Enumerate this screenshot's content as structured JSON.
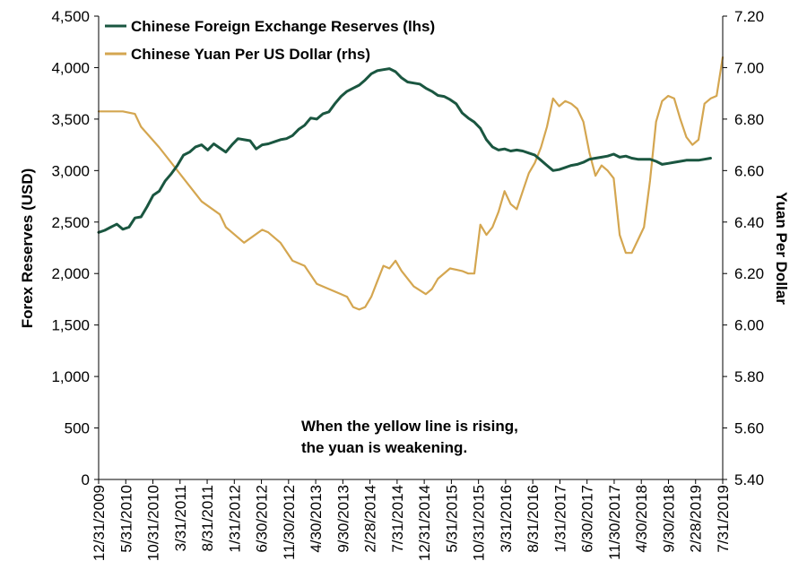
{
  "chart_data": {
    "type": "line",
    "title": "",
    "legend": {
      "placement": "top-left",
      "entries": [
        {
          "label": "Chinese Foreign Exchange Reserves (lhs)",
          "color": "#1a5640"
        },
        {
          "label": "Chinese Yuan Per US Dollar (rhs)",
          "color": "#d4a650"
        }
      ]
    },
    "annotation": {
      "line1": "When the yellow line is rising,",
      "line2": "the yuan is weakening."
    },
    "y_left": {
      "label": "Forex Reserves (USD)",
      "range": [
        0,
        4500
      ],
      "ticks": [
        "0",
        "500",
        "1,000",
        "1,500",
        "2,000",
        "2,500",
        "3,000",
        "3,500",
        "4,000",
        "4,500"
      ]
    },
    "y_right": {
      "label": "Yuan Per Dollar",
      "range": [
        5.4,
        7.2
      ],
      "ticks": [
        "5.40",
        "5.60",
        "5.80",
        "6.00",
        "6.20",
        "6.40",
        "6.60",
        "6.80",
        "7.00",
        "7.20"
      ]
    },
    "x_ticks": [
      "12/31/2009",
      "5/31/2010",
      "10/31/2010",
      "3/31/2011",
      "8/31/2011",
      "1/31/2012",
      "6/30/2012",
      "11/30/2012",
      "4/30/2013",
      "9/30/2013",
      "2/28/2014",
      "7/31/2014",
      "12/31/2014",
      "5/31/2015",
      "10/31/2015",
      "3/31/2016",
      "8/31/2016",
      "1/31/2017",
      "6/30/2017",
      "11/30/2017",
      "4/30/2018",
      "9/30/2018",
      "2/28/2019",
      "7/31/2019"
    ],
    "grid": false,
    "series": [
      {
        "name": "Chinese Foreign Exchange Reserves (lhs)",
        "axis": "left",
        "color": "#1a5640",
        "points": [
          [
            0,
            2400
          ],
          [
            1,
            2420
          ],
          [
            2,
            2450
          ],
          [
            3,
            2480
          ],
          [
            4,
            2430
          ],
          [
            5,
            2450
          ],
          [
            6,
            2540
          ],
          [
            7,
            2550
          ],
          [
            8,
            2650
          ],
          [
            9,
            2760
          ],
          [
            10,
            2800
          ],
          [
            11,
            2900
          ],
          [
            12,
            2970
          ],
          [
            13,
            3050
          ],
          [
            14,
            3150
          ],
          [
            15,
            3180
          ],
          [
            16,
            3230
          ],
          [
            17,
            3250
          ],
          [
            18,
            3200
          ],
          [
            19,
            3260
          ],
          [
            20,
            3220
          ],
          [
            21,
            3180
          ],
          [
            22,
            3250
          ],
          [
            23,
            3310
          ],
          [
            24,
            3300
          ],
          [
            25,
            3290
          ],
          [
            26,
            3210
          ],
          [
            27,
            3250
          ],
          [
            28,
            3260
          ],
          [
            29,
            3280
          ],
          [
            30,
            3300
          ],
          [
            31,
            3310
          ],
          [
            32,
            3340
          ],
          [
            33,
            3400
          ],
          [
            34,
            3440
          ],
          [
            35,
            3510
          ],
          [
            36,
            3500
          ],
          [
            37,
            3550
          ],
          [
            38,
            3570
          ],
          [
            39,
            3650
          ],
          [
            40,
            3720
          ],
          [
            41,
            3770
          ],
          [
            42,
            3800
          ],
          [
            43,
            3830
          ],
          [
            44,
            3880
          ],
          [
            45,
            3940
          ],
          [
            46,
            3970
          ],
          [
            47,
            3980
          ],
          [
            48,
            3990
          ],
          [
            49,
            3960
          ],
          [
            50,
            3900
          ],
          [
            51,
            3860
          ],
          [
            52,
            3850
          ],
          [
            53,
            3840
          ],
          [
            54,
            3800
          ],
          [
            55,
            3770
          ],
          [
            56,
            3730
          ],
          [
            57,
            3720
          ],
          [
            58,
            3690
          ],
          [
            59,
            3650
          ],
          [
            60,
            3560
          ],
          [
            61,
            3510
          ],
          [
            62,
            3470
          ],
          [
            63,
            3410
          ],
          [
            64,
            3300
          ],
          [
            65,
            3230
          ],
          [
            66,
            3200
          ],
          [
            67,
            3210
          ],
          [
            68,
            3190
          ],
          [
            69,
            3200
          ],
          [
            70,
            3190
          ],
          [
            71,
            3170
          ],
          [
            72,
            3150
          ],
          [
            73,
            3100
          ],
          [
            74,
            3050
          ],
          [
            75,
            3000
          ],
          [
            76,
            3010
          ],
          [
            77,
            3030
          ],
          [
            78,
            3050
          ],
          [
            79,
            3060
          ],
          [
            80,
            3080
          ],
          [
            81,
            3110
          ],
          [
            82,
            3120
          ],
          [
            83,
            3130
          ],
          [
            84,
            3140
          ],
          [
            85,
            3160
          ],
          [
            86,
            3130
          ],
          [
            87,
            3140
          ],
          [
            88,
            3120
          ],
          [
            89,
            3110
          ],
          [
            90,
            3110
          ],
          [
            91,
            3110
          ],
          [
            92,
            3090
          ],
          [
            93,
            3060
          ],
          [
            94,
            3070
          ],
          [
            95,
            3080
          ],
          [
            96,
            3090
          ],
          [
            97,
            3100
          ],
          [
            98,
            3100
          ],
          [
            99,
            3100
          ],
          [
            100,
            3110
          ],
          [
            101,
            3120
          ]
        ]
      },
      {
        "name": "Chinese Yuan Per US Dollar (rhs)",
        "axis": "right",
        "color": "#d4a650",
        "points": [
          [
            0,
            6.83
          ],
          [
            4,
            6.83
          ],
          [
            6,
            6.82
          ],
          [
            7,
            6.77
          ],
          [
            10,
            6.69
          ],
          [
            12,
            6.63
          ],
          [
            14,
            6.57
          ],
          [
            17,
            6.48
          ],
          [
            20,
            6.43
          ],
          [
            21,
            6.38
          ],
          [
            24,
            6.32
          ],
          [
            27,
            6.37
          ],
          [
            28,
            6.36
          ],
          [
            30,
            6.32
          ],
          [
            32,
            6.25
          ],
          [
            34,
            6.23
          ],
          [
            36,
            6.16
          ],
          [
            38,
            6.14
          ],
          [
            41,
            6.11
          ],
          [
            42,
            6.07
          ],
          [
            43,
            6.06
          ],
          [
            44,
            6.07
          ],
          [
            45,
            6.11
          ],
          [
            46,
            6.17
          ],
          [
            47,
            6.23
          ],
          [
            48,
            6.22
          ],
          [
            49,
            6.25
          ],
          [
            50,
            6.21
          ],
          [
            52,
            6.15
          ],
          [
            54,
            6.12
          ],
          [
            55,
            6.14
          ],
          [
            56,
            6.18
          ],
          [
            58,
            6.22
          ],
          [
            60,
            6.21
          ],
          [
            61,
            6.2
          ],
          [
            62,
            6.2
          ],
          [
            63,
            6.39
          ],
          [
            64,
            6.35
          ],
          [
            65,
            6.38
          ],
          [
            66,
            6.44
          ],
          [
            67,
            6.52
          ],
          [
            68,
            6.47
          ],
          [
            69,
            6.45
          ],
          [
            70,
            6.52
          ],
          [
            71,
            6.59
          ],
          [
            72,
            6.63
          ],
          [
            73,
            6.69
          ],
          [
            74,
            6.77
          ],
          [
            75,
            6.88
          ],
          [
            76,
            6.85
          ],
          [
            77,
            6.87
          ],
          [
            78,
            6.86
          ],
          [
            79,
            6.84
          ],
          [
            80,
            6.79
          ],
          [
            81,
            6.67
          ],
          [
            82,
            6.58
          ],
          [
            83,
            6.62
          ],
          [
            84,
            6.6
          ],
          [
            85,
            6.57
          ],
          [
            86,
            6.35
          ],
          [
            87,
            6.28
          ],
          [
            88,
            6.28
          ],
          [
            89,
            6.33
          ],
          [
            90,
            6.38
          ],
          [
            91,
            6.56
          ],
          [
            92,
            6.79
          ],
          [
            93,
            6.87
          ],
          [
            94,
            6.89
          ],
          [
            95,
            6.88
          ],
          [
            96,
            6.8
          ],
          [
            97,
            6.73
          ],
          [
            98,
            6.7
          ],
          [
            99,
            6.72
          ],
          [
            100,
            6.86
          ],
          [
            101,
            6.88
          ],
          [
            102,
            6.89
          ],
          [
            103,
            7.04
          ]
        ]
      }
    ]
  }
}
